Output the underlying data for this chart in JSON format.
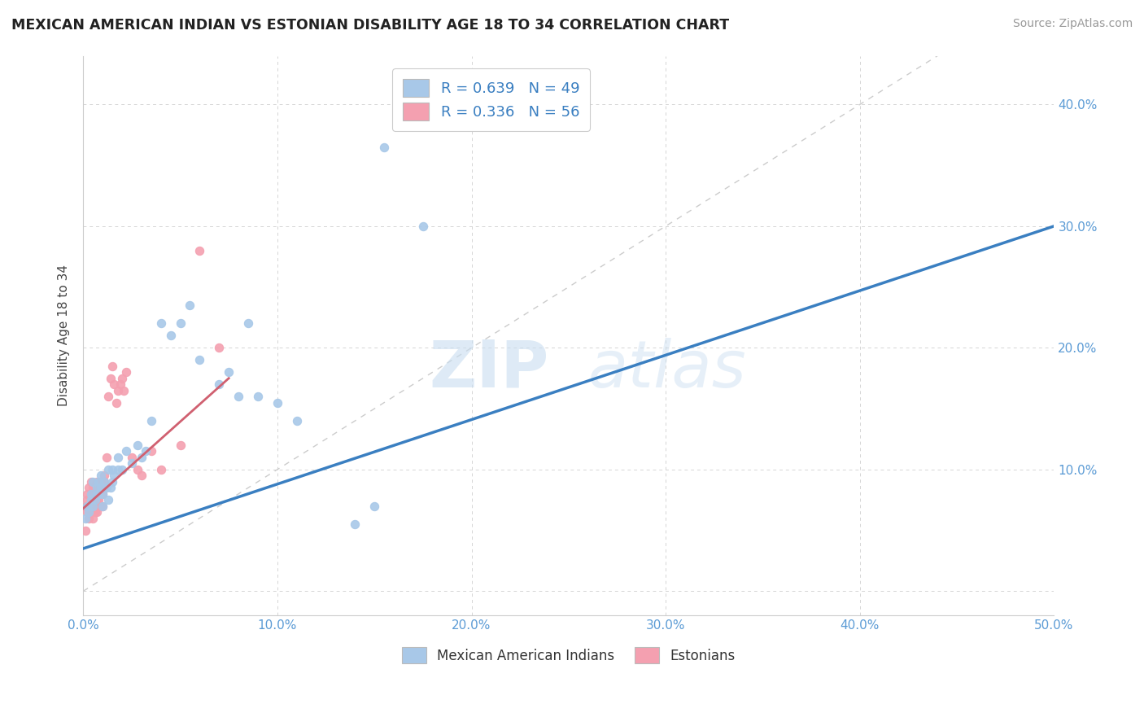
{
  "title": "MEXICAN AMERICAN INDIAN VS ESTONIAN DISABILITY AGE 18 TO 34 CORRELATION CHART",
  "source": "Source: ZipAtlas.com",
  "ylabel": "Disability Age 18 to 34",
  "xlim": [
    0,
    0.5
  ],
  "ylim": [
    -0.02,
    0.44
  ],
  "xticks": [
    0.0,
    0.1,
    0.2,
    0.3,
    0.4,
    0.5
  ],
  "yticks": [
    0.0,
    0.1,
    0.2,
    0.3,
    0.4
  ],
  "xtick_labels": [
    "0.0%",
    "10.0%",
    "20.0%",
    "30.0%",
    "40.0%",
    "50.0%"
  ],
  "ytick_labels_right": [
    "",
    "10.0%",
    "20.0%",
    "30.0%",
    "40.0%"
  ],
  "blue_color": "#a8c8e8",
  "pink_color": "#f4a0b0",
  "blue_line_color": "#3a7fc1",
  "pink_line_color": "#d06070",
  "legend_r_blue": "R = 0.639",
  "legend_n_blue": "N = 49",
  "legend_r_pink": "R = 0.336",
  "legend_n_pink": "N = 56",
  "blue_scatter_x": [
    0.001,
    0.002,
    0.003,
    0.004,
    0.004,
    0.005,
    0.005,
    0.006,
    0.007,
    0.007,
    0.008,
    0.008,
    0.009,
    0.009,
    0.01,
    0.01,
    0.011,
    0.012,
    0.013,
    0.013,
    0.014,
    0.015,
    0.015,
    0.016,
    0.018,
    0.018,
    0.02,
    0.022,
    0.025,
    0.028,
    0.03,
    0.032,
    0.035,
    0.04,
    0.045,
    0.05,
    0.055,
    0.06,
    0.07,
    0.075,
    0.08,
    0.085,
    0.09,
    0.1,
    0.11,
    0.14,
    0.15,
    0.155,
    0.175
  ],
  "blue_scatter_y": [
    0.06,
    0.07,
    0.065,
    0.075,
    0.08,
    0.07,
    0.09,
    0.075,
    0.08,
    0.085,
    0.08,
    0.09,
    0.085,
    0.095,
    0.07,
    0.08,
    0.09,
    0.085,
    0.075,
    0.1,
    0.085,
    0.09,
    0.1,
    0.095,
    0.1,
    0.11,
    0.1,
    0.115,
    0.105,
    0.12,
    0.11,
    0.115,
    0.14,
    0.22,
    0.21,
    0.22,
    0.235,
    0.19,
    0.17,
    0.18,
    0.16,
    0.22,
    0.16,
    0.155,
    0.14,
    0.055,
    0.07,
    0.365,
    0.3
  ],
  "pink_scatter_x": [
    0.001,
    0.001,
    0.002,
    0.002,
    0.002,
    0.003,
    0.003,
    0.003,
    0.004,
    0.004,
    0.004,
    0.004,
    0.005,
    0.005,
    0.005,
    0.005,
    0.005,
    0.006,
    0.006,
    0.006,
    0.006,
    0.007,
    0.007,
    0.007,
    0.007,
    0.008,
    0.008,
    0.008,
    0.009,
    0.009,
    0.009,
    0.009,
    0.01,
    0.01,
    0.01,
    0.011,
    0.011,
    0.012,
    0.013,
    0.014,
    0.015,
    0.016,
    0.017,
    0.018,
    0.019,
    0.02,
    0.021,
    0.022,
    0.025,
    0.028,
    0.03,
    0.035,
    0.04,
    0.05,
    0.06,
    0.07
  ],
  "pink_scatter_y": [
    0.05,
    0.07,
    0.065,
    0.075,
    0.08,
    0.06,
    0.07,
    0.085,
    0.065,
    0.075,
    0.08,
    0.09,
    0.06,
    0.07,
    0.08,
    0.075,
    0.085,
    0.065,
    0.075,
    0.08,
    0.085,
    0.065,
    0.075,
    0.08,
    0.09,
    0.07,
    0.075,
    0.085,
    0.07,
    0.08,
    0.085,
    0.09,
    0.07,
    0.08,
    0.085,
    0.09,
    0.095,
    0.11,
    0.16,
    0.175,
    0.185,
    0.17,
    0.155,
    0.165,
    0.17,
    0.175,
    0.165,
    0.18,
    0.11,
    0.1,
    0.095,
    0.115,
    0.1,
    0.12,
    0.28,
    0.2
  ],
  "blue_line_x": [
    0.0,
    0.5
  ],
  "blue_line_y": [
    0.035,
    0.3
  ],
  "pink_line_x": [
    0.0,
    0.075
  ],
  "pink_line_y": [
    0.068,
    0.175
  ],
  "ref_line_x": [
    0.0,
    0.44
  ],
  "ref_line_y": [
    0.0,
    0.44
  ]
}
